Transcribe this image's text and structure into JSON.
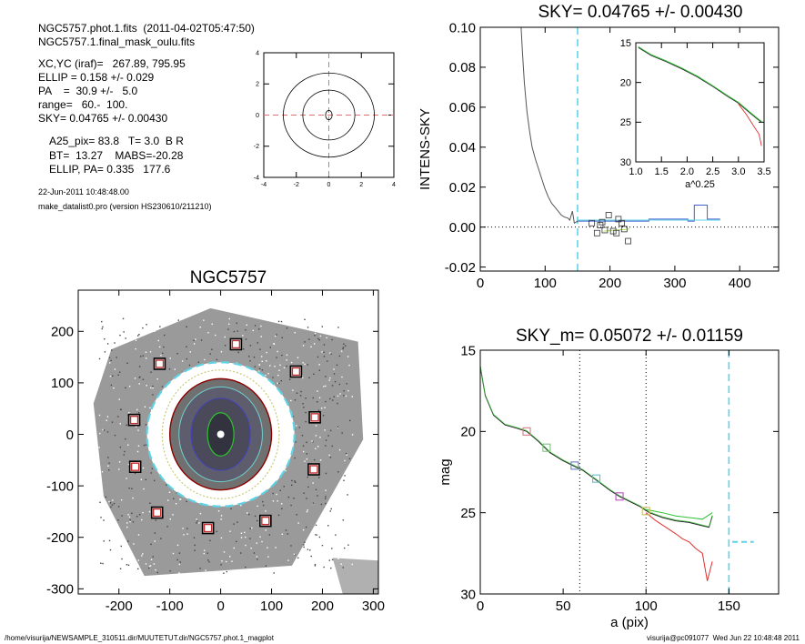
{
  "header": {
    "file_line": "NGC5757.phot.1.fits  (2011-04-02T05:47:50)",
    "mask_line": "NGC5757.1.final_mask_oulu.fits",
    "xcyc_line": "XC,YC (iraf)=   267.89, 795.95",
    "ellip_line": "ELLIP = 0.158 +/- 0.029",
    "pa_line": "PA    =  30.9 +/-   5.0",
    "range_line": "range=   60.-  100.",
    "sky_line": "SKY= 0.04765 +/- 0.00430",
    "a25_line": "A25_pix= 83.8   T= 3.0  B R",
    "bt_line": "BT=  13.27    MABS=-20.28",
    "ellippa_line": "ELLIP, PA= 0.335   177.6",
    "date_line": "22-Jun-2011 10:48:48.00",
    "prog_line": "make_datalist0.pro (version HS230610/211210)"
  },
  "footer": {
    "left": "/home/visurija/NEWSAMPLE_310511.dir/MUUTETUT.dir/NGC5757.phot.1_magplot",
    "right": "visurija@pc091077  Wed Jun 22 10:48:48 2011"
  },
  "colors": {
    "cyan": "#5fd3e6",
    "red": "#e03030",
    "green": "#30c030",
    "darkred": "#8b0000",
    "gray": "#555555"
  },
  "chart_data": [
    {
      "id": "isophote_mini",
      "type": "line",
      "title": "",
      "xlim": [
        -4,
        4
      ],
      "ylim": [
        -4,
        4
      ],
      "xticks": [
        "-4",
        "-2",
        "0",
        "2",
        "4"
      ],
      "yticks": [
        "-4",
        "-2",
        "0",
        "2",
        "4"
      ],
      "ellipses": [
        {
          "rx": 2.8,
          "ry": 2.7
        },
        {
          "rx": 1.6,
          "ry": 1.6
        },
        {
          "rx": 0.2,
          "ry": 0.3
        }
      ]
    },
    {
      "id": "image",
      "type": "scatter",
      "title": "NGC5757",
      "xlim": [
        -280,
        310
      ],
      "ylim": [
        -310,
        280
      ],
      "xticks": [
        "-200",
        "-100",
        "0",
        "100",
        "200",
        "300"
      ],
      "yticks": [
        "-300",
        "-200",
        "-100",
        "0",
        "100",
        "200"
      ],
      "sky_boxes": [
        {
          "x": 30,
          "y": 175
        },
        {
          "x": -120,
          "y": 137
        },
        {
          "x": 148,
          "y": 122
        },
        {
          "x": -170,
          "y": 28
        },
        {
          "x": 185,
          "y": 33
        },
        {
          "x": -168,
          "y": -63
        },
        {
          "x": 183,
          "y": -68
        },
        {
          "x": -125,
          "y": -152
        },
        {
          "x": 88,
          "y": -168
        },
        {
          "x": -25,
          "y": -182
        }
      ]
    },
    {
      "id": "sky",
      "type": "line",
      "title": "SKY= 0.04765 +/- 0.00430",
      "ylabel": "INTENS-SKY",
      "xlim": [
        0,
        460
      ],
      "ylim": [
        -0.022,
        0.1
      ],
      "xticks": [
        "0",
        "100",
        "200",
        "300",
        "400"
      ],
      "yticks": [
        "-0.02",
        "0.00",
        "0.02",
        "0.04",
        "0.06",
        "0.08",
        "0.10"
      ],
      "profile": [
        [
          63,
          0.1
        ],
        [
          65,
          0.088
        ],
        [
          68,
          0.072
        ],
        [
          72,
          0.058
        ],
        [
          76,
          0.048
        ],
        [
          80,
          0.04
        ],
        [
          85,
          0.034
        ],
        [
          90,
          0.029
        ],
        [
          95,
          0.024
        ],
        [
          100,
          0.019
        ],
        [
          105,
          0.015
        ],
        [
          110,
          0.012
        ],
        [
          115,
          0.01
        ],
        [
          120,
          0.008
        ],
        [
          125,
          0.006
        ],
        [
          130,
          0.005
        ],
        [
          135,
          0.0045
        ],
        [
          138,
          0.0035
        ],
        [
          142,
          0.008
        ],
        [
          145,
          0.002
        ],
        [
          150,
          0.003
        ]
      ],
      "sky_line_x": 150,
      "sky_points": [
        [
          172,
          0.002
        ],
        [
          180,
          -0.003
        ],
        [
          185,
          0.001
        ],
        [
          188,
          0.0025
        ],
        [
          192,
          -0.0015
        ],
        [
          198,
          0.006
        ],
        [
          205,
          -0.002
        ],
        [
          210,
          -0.003
        ],
        [
          213,
          0.004
        ],
        [
          218,
          0.002
        ],
        [
          222,
          -0.001
        ],
        [
          228,
          -0.007
        ]
      ],
      "inset": {
        "xlabel": "a^0.25",
        "xlim": [
          1.0,
          3.5
        ],
        "ylim": [
          15,
          30
        ],
        "xticks": [
          "1.0",
          "1.5",
          "2.0",
          "2.5",
          "3.0",
          "3.5"
        ],
        "yticks": [
          "15",
          "20",
          "25",
          "30"
        ]
      }
    },
    {
      "id": "mag",
      "type": "line",
      "title": "SKY_m=  0.05072 +/- 0.01159",
      "xlabel": "a (pix)",
      "ylabel": "mag",
      "xlim": [
        0,
        180
      ],
      "ylim": [
        15,
        30
      ],
      "xticks": [
        "0",
        "50",
        "100",
        "150"
      ],
      "yticks": [
        "15",
        "20",
        "25",
        "30"
      ],
      "range_lines": [
        60,
        100
      ],
      "sky_line_x": 150,
      "profile": [
        [
          0,
          16.0
        ],
        [
          3,
          17.8
        ],
        [
          8,
          19.0
        ],
        [
          15,
          19.6
        ],
        [
          22,
          19.8
        ],
        [
          28,
          20.0
        ],
        [
          35,
          20.6
        ],
        [
          42,
          21.3
        ],
        [
          50,
          21.8
        ],
        [
          56,
          22.1
        ],
        [
          62,
          22.4
        ],
        [
          70,
          23.0
        ],
        [
          78,
          23.6
        ],
        [
          84,
          24.0
        ],
        [
          90,
          24.3
        ],
        [
          96,
          24.6
        ],
        [
          102,
          25.0
        ],
        [
          110,
          25.3
        ],
        [
          118,
          25.5
        ],
        [
          126,
          25.6
        ],
        [
          134,
          25.8
        ],
        [
          138,
          25.9
        ],
        [
          140,
          25.2
        ]
      ],
      "profile_red": [
        [
          100,
          25.0
        ],
        [
          106,
          25.5
        ],
        [
          112,
          25.9
        ],
        [
          118,
          26.3
        ],
        [
          122,
          26.6
        ],
        [
          126,
          26.8
        ],
        [
          130,
          27.2
        ],
        [
          134,
          27.5
        ],
        [
          137,
          29.2
        ],
        [
          140,
          28.0
        ]
      ],
      "profile_green": [
        [
          100,
          24.8
        ],
        [
          110,
          25.0
        ],
        [
          118,
          25.2
        ],
        [
          126,
          25.3
        ],
        [
          134,
          25.4
        ],
        [
          140,
          25.0
        ]
      ],
      "squares": [
        {
          "x": 28,
          "y": 20.0,
          "c": "#d08080"
        },
        {
          "x": 40,
          "y": 21.0,
          "c": "#80c080"
        },
        {
          "x": 57,
          "y": 22.1,
          "c": "#6a7fc0"
        },
        {
          "x": 70,
          "y": 22.9,
          "c": "#60c0d0"
        },
        {
          "x": 84,
          "y": 24.0,
          "c": "#c050c0"
        },
        {
          "x": 100,
          "y": 24.9,
          "c": "#d0c060"
        }
      ],
      "sky_dash": [
        [
          152,
          26.8
        ],
        [
          165,
          26.8
        ]
      ]
    }
  ]
}
